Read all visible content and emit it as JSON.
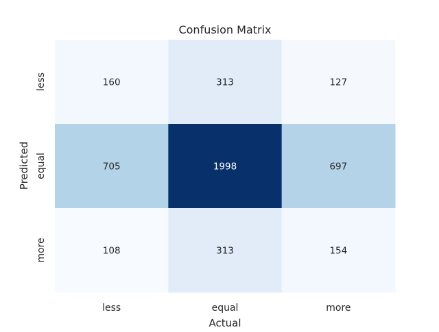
{
  "chart_data": {
    "type": "heatmap",
    "title": "Confusion Matrix",
    "xlabel": "Actual",
    "ylabel": "Predicted",
    "x_categories": [
      "less",
      "equal",
      "more"
    ],
    "y_categories": [
      "less",
      "equal",
      "more"
    ],
    "values": [
      [
        160,
        313,
        127
      ],
      [
        705,
        1998,
        697
      ],
      [
        108,
        313,
        154
      ]
    ],
    "colormap": "Blues",
    "colorbar": false,
    "grid": false,
    "cell_colors": [
      [
        "#f3f8fe",
        "#e1ecf8",
        "#f5f9fe"
      ],
      [
        "#b3d3e8",
        "#08306b",
        "#b4d3e9"
      ],
      [
        "#f7fbff",
        "#e1ecf8",
        "#f2f8fd"
      ]
    ],
    "text_colors": {
      "light_cell": "#262626",
      "dark_cell": "#ffffff"
    }
  }
}
